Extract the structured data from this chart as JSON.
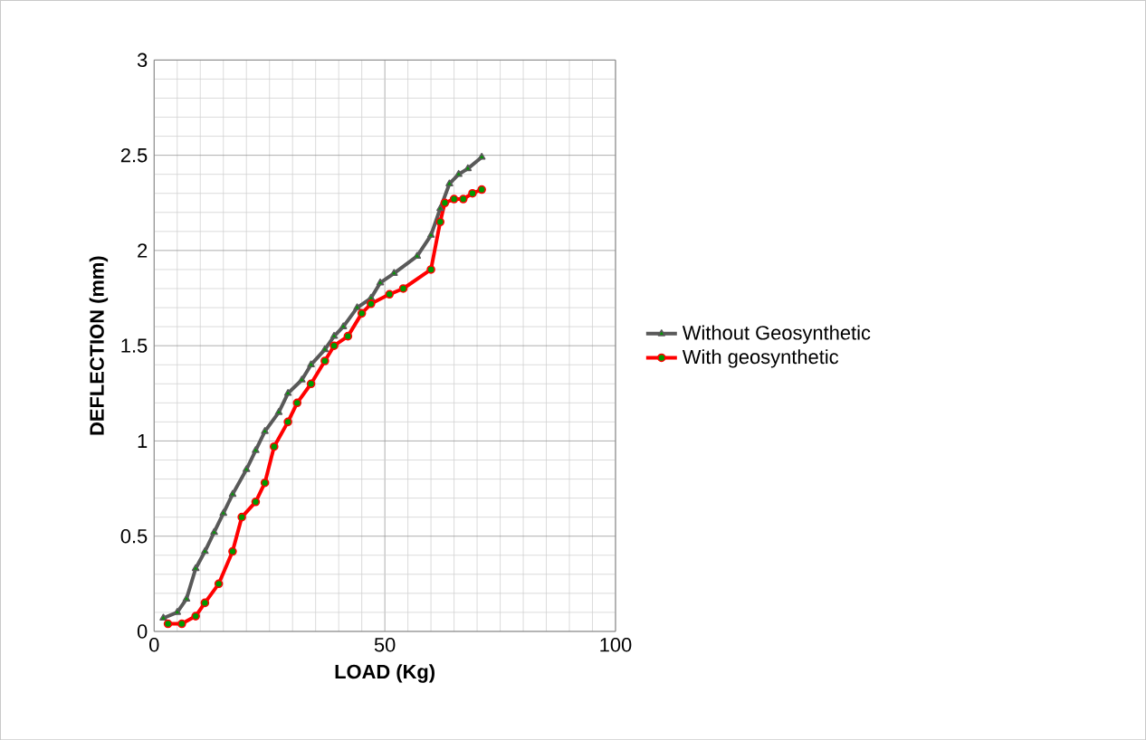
{
  "chart_data": {
    "type": "line",
    "xlabel": "LOAD (Kg)",
    "ylabel": "DEFLECTION (mm)",
    "xlim": [
      0,
      100
    ],
    "xticks": [
      0,
      50,
      100
    ],
    "ylim": [
      0,
      3
    ],
    "yticks": [
      0,
      0.5,
      1,
      1.5,
      2,
      2.5,
      3
    ],
    "grid": true,
    "legend": "right",
    "series": [
      {
        "name": "Without Geosynthetic",
        "color": "#595959",
        "marker": "triangle",
        "x": [
          2,
          5,
          7,
          9,
          11,
          13,
          15,
          17,
          20,
          22,
          24,
          27,
          29,
          32,
          34,
          37,
          39,
          41,
          44,
          47,
          49,
          52,
          57,
          60,
          62,
          64,
          66,
          68,
          71
        ],
        "values": [
          0.07,
          0.1,
          0.17,
          0.33,
          0.42,
          0.52,
          0.62,
          0.72,
          0.85,
          0.95,
          1.05,
          1.15,
          1.25,
          1.32,
          1.4,
          1.48,
          1.55,
          1.6,
          1.7,
          1.75,
          1.83,
          1.88,
          1.97,
          2.08,
          2.22,
          2.35,
          2.4,
          2.43,
          2.49
        ]
      },
      {
        "name": "With geosynthetic",
        "color": "#ff0000",
        "marker": "circle",
        "x": [
          3,
          6,
          9,
          11,
          14,
          17,
          19,
          22,
          24,
          26,
          29,
          31,
          34,
          37,
          39,
          42,
          45,
          47,
          51,
          54,
          60,
          62,
          63,
          65,
          67,
          69,
          71
        ],
        "values": [
          0.04,
          0.04,
          0.08,
          0.15,
          0.25,
          0.42,
          0.6,
          0.68,
          0.78,
          0.97,
          1.1,
          1.2,
          1.3,
          1.42,
          1.5,
          1.55,
          1.67,
          1.72,
          1.77,
          1.8,
          1.9,
          2.15,
          2.25,
          2.27,
          2.27,
          2.3,
          2.32
        ]
      }
    ]
  }
}
